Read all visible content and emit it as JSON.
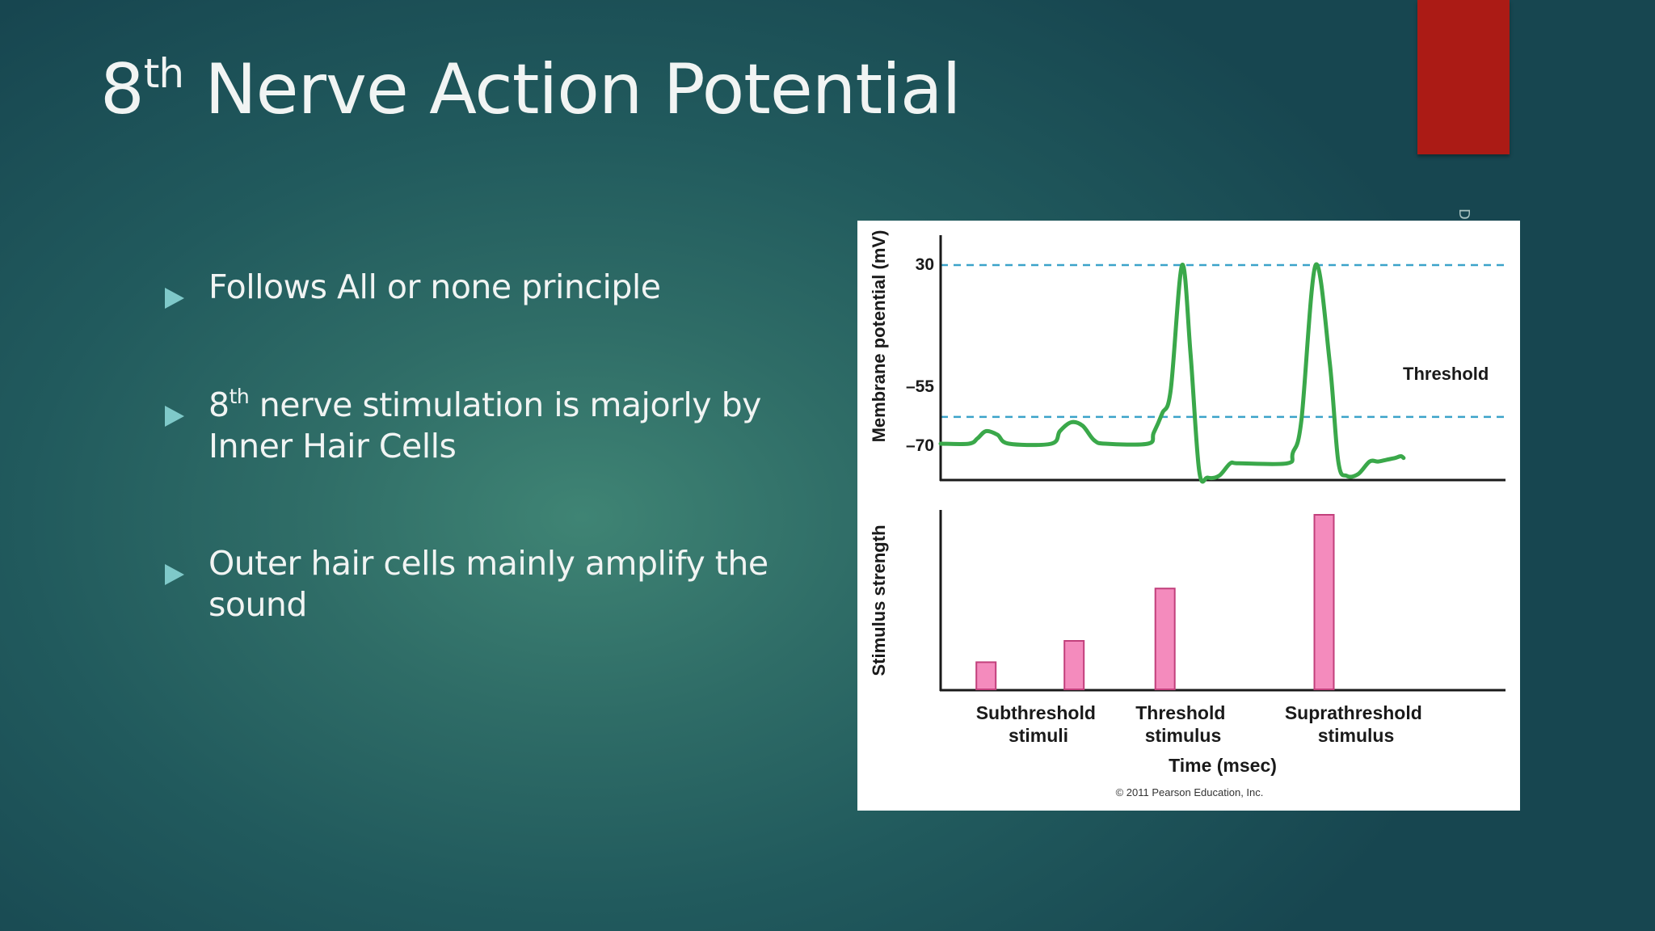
{
  "slide": {
    "title": {
      "pre": "8",
      "sup": "th",
      "rest": " Nerve Action Potential"
    },
    "bullets": [
      {
        "pre": "",
        "sup": "",
        "rest": "Follows All or none principle"
      },
      {
        "pre": "8",
        "sup": "th",
        "rest": " nerve stimulation is majorly by Inner Hair Cells"
      },
      {
        "pre": "",
        "sup": "",
        "rest": "Outer hair cells mainly amplify the sound"
      }
    ],
    "side_mark": "D"
  },
  "colors": {
    "accent_bar": "#ab1b15",
    "bullet_arrow": "#7fc9c9",
    "trace": "#3aa84a",
    "threshold_line": "#3ba3c9",
    "bar_fill": "#f48bbd",
    "bar_stroke": "#c2407c"
  },
  "chart_data": [
    {
      "type": "line",
      "title": "",
      "ylabel": "Membrane potential (mV)",
      "y_ticks": [
        "30",
        "–55",
        "–70"
      ],
      "threshold_label": "Threshold",
      "reference_lines": [
        30,
        -55
      ],
      "ylim": [
        -95,
        40
      ],
      "x_units": "msec",
      "series": [
        {
          "x": [
            0,
            5,
            6.5,
            8,
            10,
            12,
            19.5,
            21,
            23,
            25,
            27,
            29,
            36.5,
            37.5,
            39,
            40.5,
            42.5,
            44,
            45.5,
            47,
            49,
            51,
            52.5,
            61,
            62,
            63.5,
            66,
            68.5,
            70,
            71.5,
            73.5,
            75.5,
            77,
            78.5,
            80,
            81,
            81.5
          ],
          "y": [
            -70,
            -70,
            -67,
            -63,
            -65,
            -70,
            -70,
            -63,
            -58,
            -60,
            -68,
            -70,
            -70,
            -64,
            -53,
            -40,
            30,
            -20,
            -85,
            -89,
            -88,
            -81,
            -81,
            -81,
            -75,
            -57,
            30,
            -25,
            -80,
            -88,
            -87,
            -80,
            -80,
            -79,
            -78,
            -77,
            -78
          ]
        }
      ]
    },
    {
      "type": "bar",
      "ylabel": "Stimulus strength",
      "xlabel": "Time (msec)",
      "group_labels": [
        {
          "line1": "Subthreshold",
          "line2": "stimuli"
        },
        {
          "line1": "Threshold",
          "line2": "stimulus"
        },
        {
          "line1": "Suprathreshold",
          "line2": "stimulus"
        }
      ],
      "bars": [
        {
          "x": 8,
          "value": 0.14
        },
        {
          "x": 23.5,
          "value": 0.25
        },
        {
          "x": 39.5,
          "value": 0.52
        },
        {
          "x": 67.5,
          "value": 0.9
        }
      ],
      "credit": "© 2011 Pearson Education, Inc."
    }
  ]
}
